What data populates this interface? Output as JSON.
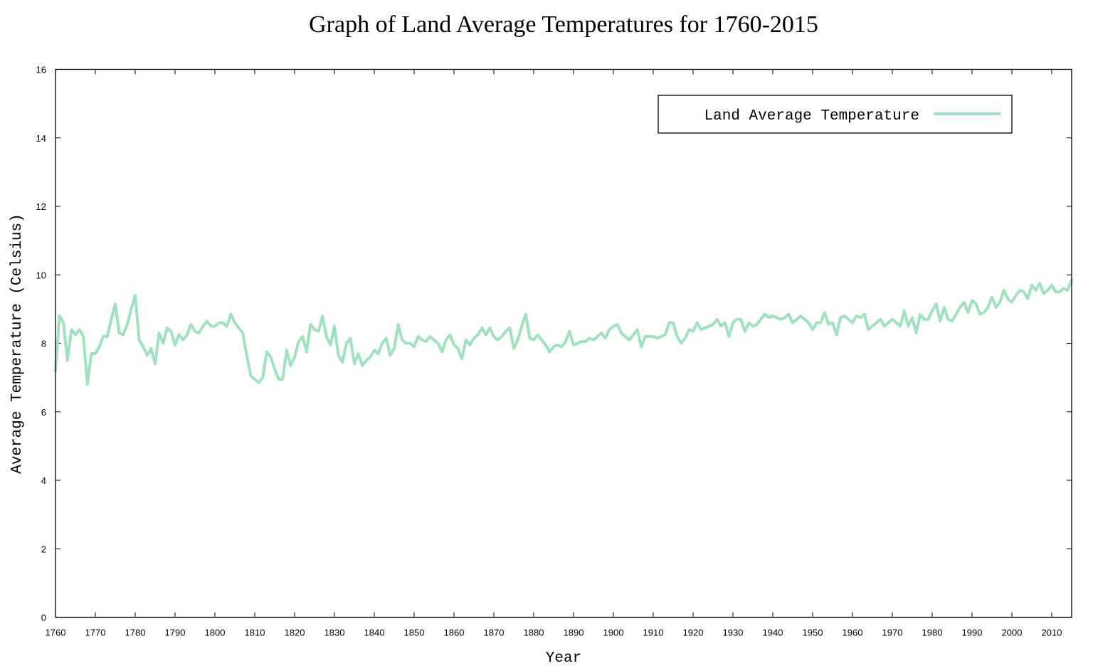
{
  "chart_data": {
    "type": "line",
    "title": "Graph of Land Average Temperatures for 1760-2015",
    "xlabel": "Year",
    "ylabel": "Average Temperature (Celsius)",
    "xlim": [
      1760,
      2015
    ],
    "ylim": [
      0,
      16
    ],
    "x_ticks": [
      1760,
      1770,
      1780,
      1790,
      1800,
      1810,
      1820,
      1830,
      1840,
      1850,
      1860,
      1870,
      1880,
      1890,
      1900,
      1910,
      1920,
      1930,
      1940,
      1950,
      1960,
      1970,
      1980,
      1990,
      2000,
      2010
    ],
    "y_ticks": [
      0,
      2,
      4,
      6,
      8,
      10,
      12,
      14,
      16
    ],
    "grid": false,
    "legend_position": "top-right",
    "series": [
      {
        "name": "Land Average Temperature",
        "color": "#9fe2bf",
        "x_start": 1760,
        "x_step": 1,
        "values": [
          7.2,
          8.8,
          8.6,
          7.5,
          8.4,
          8.25,
          8.4,
          8.2,
          6.8,
          7.7,
          7.7,
          7.9,
          8.2,
          8.2,
          8.7,
          9.15,
          8.3,
          8.25,
          8.55,
          9.0,
          9.4,
          8.1,
          7.9,
          7.65,
          7.85,
          7.4,
          8.3,
          8.0,
          8.45,
          8.35,
          7.95,
          8.25,
          8.1,
          8.25,
          8.55,
          8.35,
          8.3,
          8.5,
          8.65,
          8.5,
          8.5,
          8.6,
          8.6,
          8.5,
          8.85,
          8.6,
          8.45,
          8.3,
          7.65,
          7.05,
          6.95,
          6.85,
          7.0,
          7.75,
          7.6,
          7.25,
          6.95,
          6.95,
          7.8,
          7.35,
          7.6,
          8.05,
          8.2,
          7.75,
          8.55,
          8.4,
          8.35,
          8.8,
          8.2,
          7.95,
          8.5,
          7.65,
          7.45,
          8.0,
          8.15,
          7.4,
          7.7,
          7.35,
          7.5,
          7.6,
          7.8,
          7.7,
          8.0,
          8.15,
          7.65,
          7.85,
          8.55,
          8.1,
          8.0,
          8.0,
          7.9,
          8.2,
          8.1,
          8.05,
          8.2,
          8.1,
          8.0,
          7.75,
          8.1,
          8.25,
          7.95,
          7.85,
          7.55,
          8.1,
          7.95,
          8.15,
          8.25,
          8.45,
          8.25,
          8.45,
          8.2,
          8.1,
          8.2,
          8.35,
          8.45,
          7.85,
          8.1,
          8.5,
          8.85,
          8.15,
          8.1,
          8.25,
          8.1,
          7.95,
          7.75,
          7.9,
          7.95,
          7.9,
          8.05,
          8.35,
          7.95,
          8.0,
          8.05,
          8.05,
          8.15,
          8.1,
          8.2,
          8.3,
          8.15,
          8.4,
          8.5,
          8.55,
          8.3,
          8.2,
          8.1,
          8.25,
          8.4,
          7.9,
          8.2,
          8.2,
          8.2,
          8.15,
          8.2,
          8.25,
          8.6,
          8.6,
          8.2,
          8.0,
          8.15,
          8.4,
          8.35,
          8.6,
          8.4,
          8.45,
          8.5,
          8.55,
          8.7,
          8.5,
          8.6,
          8.2,
          8.6,
          8.7,
          8.7,
          8.35,
          8.6,
          8.5,
          8.55,
          8.7,
          8.85,
          8.75,
          8.8,
          8.75,
          8.7,
          8.75,
          8.85,
          8.6,
          8.7,
          8.8,
          8.7,
          8.6,
          8.4,
          8.6,
          8.6,
          8.9,
          8.55,
          8.6,
          8.25,
          8.75,
          8.8,
          8.7,
          8.6,
          8.8,
          8.75,
          8.85,
          8.4,
          8.5,
          8.6,
          8.7,
          8.5,
          8.6,
          8.7,
          8.6,
          8.5,
          8.95,
          8.5,
          8.75,
          8.3,
          8.85,
          8.7,
          8.7,
          8.95,
          9.15,
          8.65,
          9.05,
          8.7,
          8.65,
          8.85,
          9.05,
          9.2,
          8.9,
          9.25,
          9.15,
          8.85,
          8.9,
          9.05,
          9.35,
          9.05,
          9.2,
          9.55,
          9.3,
          9.2,
          9.4,
          9.55,
          9.5,
          9.3,
          9.7,
          9.55,
          9.75,
          9.45,
          9.55,
          9.7,
          9.5,
          9.5,
          9.6,
          9.55,
          9.85
        ]
      }
    ]
  }
}
